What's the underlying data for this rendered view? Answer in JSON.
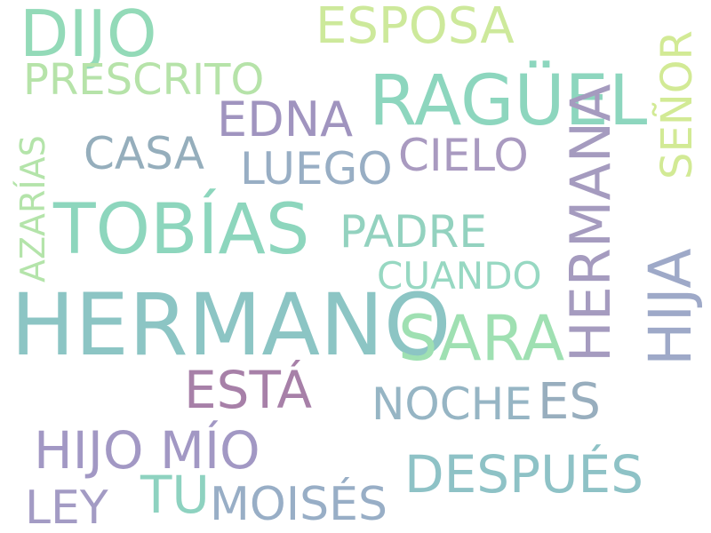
{
  "words": {
    "hermano": {
      "text": "HERMANO",
      "color": "#8cc5c4"
    },
    "tobias": {
      "text": "TOBÍAS",
      "color": "#8dd6bd"
    },
    "raguel": {
      "text": "RAGÜEL",
      "color": "#8dd6be"
    },
    "dijo": {
      "text": "DIJO",
      "color": "#93dab8"
    },
    "sara": {
      "text": "SARA",
      "color": "#9fe0b2"
    },
    "esposa": {
      "text": "ESPOSA",
      "color": "#cde99b"
    },
    "prescrito": {
      "text": "PRESCRITO",
      "color": "#b6e3a9"
    },
    "edna": {
      "text": "EDNA",
      "color": "#a094bf"
    },
    "casa": {
      "text": "CASA",
      "color": "#95aebc"
    },
    "luego": {
      "text": "LUEGO",
      "color": "#98aec4"
    },
    "cielo": {
      "text": "CIELO",
      "color": "#a99ac0"
    },
    "padre": {
      "text": "PADRE",
      "color": "#93d2bf"
    },
    "cuando": {
      "text": "CUANDO",
      "color": "#97d8c2"
    },
    "esta": {
      "text": "ESTÁ",
      "color": "#a780a8"
    },
    "noche": {
      "text": "NOCHE",
      "color": "#96b5c4"
    },
    "es": {
      "text": "ES",
      "color": "#98aebe"
    },
    "hijo_mio": {
      "text": "HIJO MÍO",
      "color": "#a298c4"
    },
    "despues": {
      "text": "DESPUÉS",
      "color": "#8ec2c6"
    },
    "ley": {
      "text": "LEY",
      "color": "#a39bc4"
    },
    "tu": {
      "text": "TU",
      "color": "#8ed2c0"
    },
    "moises": {
      "text": "MOISÉS",
      "color": "#98aec6"
    },
    "hermana": {
      "text": "HERMANA",
      "color": "#a59bbf"
    },
    "hija": {
      "text": "HIJA",
      "color": "#9ea9c8"
    },
    "senor": {
      "text": "SEÑOR",
      "color": "#d2ea95"
    },
    "azarias": {
      "text": "AZARÍAS",
      "color": "#b4e4aa"
    }
  }
}
